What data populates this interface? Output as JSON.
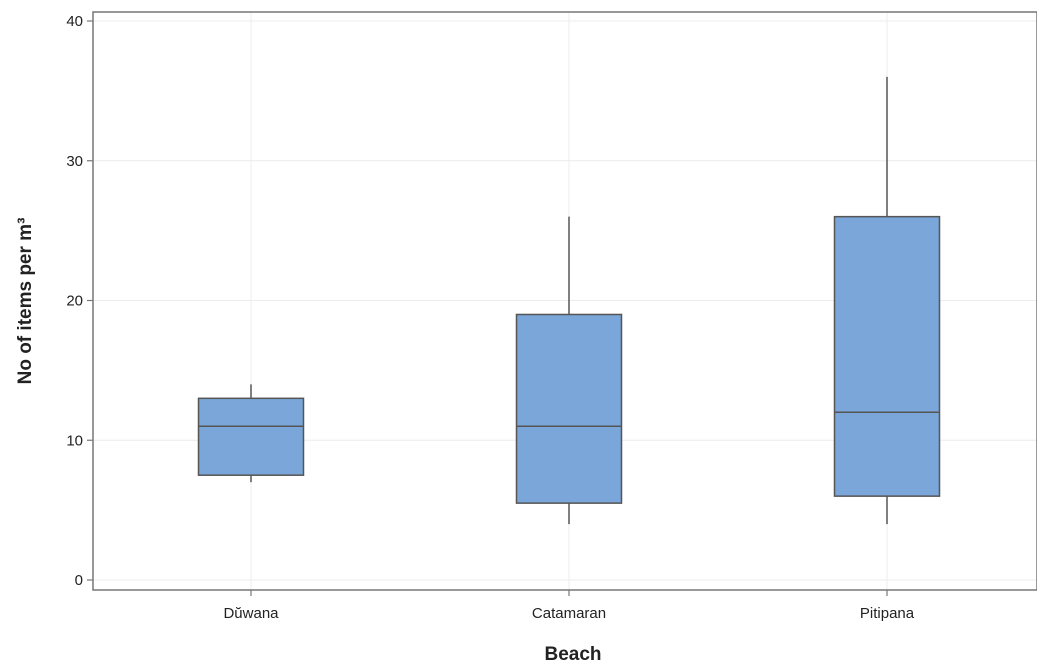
{
  "chart_data": {
    "type": "box",
    "xlabel": "Beach",
    "ylabel": "No of items per m³",
    "ylim": [
      0,
      40
    ],
    "yticks": [
      0,
      10,
      20,
      30,
      40
    ],
    "grid": true,
    "colors": {
      "box_fill": "#7aa6d9",
      "box_stroke": "#555555",
      "grid": "#ececec",
      "axis": "#777777"
    },
    "categories": [
      "Dŭwana",
      "Catamaran",
      "Pitipana"
    ],
    "boxes": [
      {
        "category": "Dŭwana",
        "min": 7,
        "q1": 7.5,
        "median": 11,
        "q3": 13,
        "max": 14
      },
      {
        "category": "Catamaran",
        "min": 4,
        "q1": 5.5,
        "median": 11,
        "q3": 19,
        "max": 26
      },
      {
        "category": "Pitipana",
        "min": 4,
        "q1": 6,
        "median": 12,
        "q3": 26,
        "max": 36
      }
    ]
  }
}
